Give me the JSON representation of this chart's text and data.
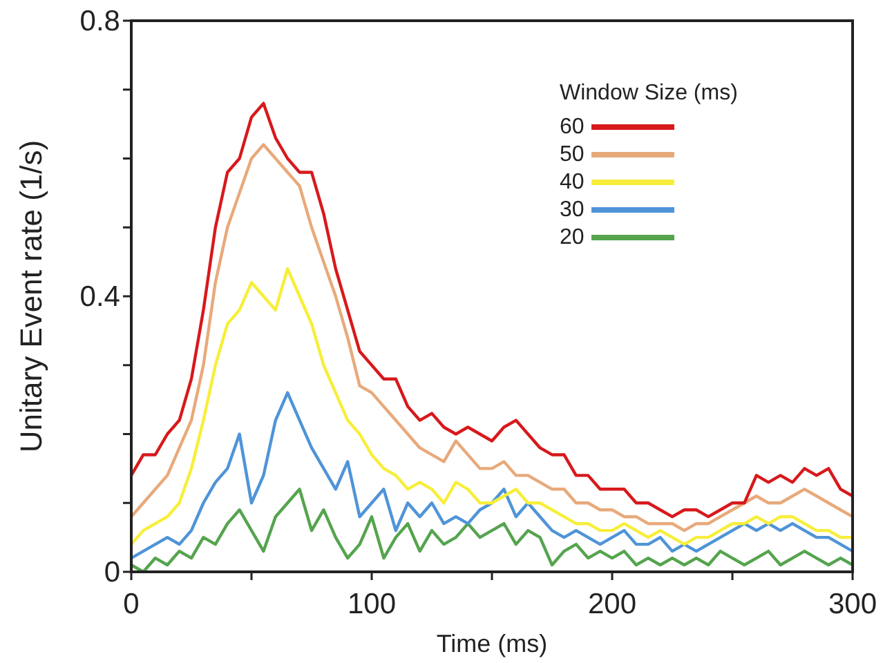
{
  "chart_data": {
    "type": "line",
    "xlabel": "Time (ms)",
    "ylabel": "Unitary Event rate  (1/s)",
    "legend_title": "Window Size (ms)",
    "legend": "top right",
    "grid": false,
    "line_style": "solid",
    "x": [
      0,
      5,
      10,
      15,
      20,
      25,
      30,
      35,
      40,
      45,
      50,
      55,
      60,
      65,
      70,
      75,
      80,
      85,
      90,
      95,
      100,
      105,
      110,
      115,
      120,
      125,
      130,
      135,
      140,
      145,
      150,
      155,
      160,
      165,
      170,
      175,
      180,
      185,
      190,
      195,
      200,
      205,
      210,
      215,
      220,
      225,
      230,
      235,
      240,
      245,
      250,
      255,
      260,
      265,
      270,
      275,
      280,
      285,
      290,
      295,
      300
    ],
    "xlim": [
      0,
      300
    ],
    "xticks": [
      0,
      {
        "value": 50,
        "label": null
      },
      100,
      {
        "value": 150,
        "label": null
      },
      200,
      {
        "value": 250,
        "label": null
      },
      300
    ],
    "ylim": [
      0,
      0.8
    ],
    "yticks": [
      0,
      {
        "value": 0.1,
        "label": null
      },
      {
        "value": 0.2,
        "label": null
      },
      {
        "value": 0.3,
        "label": null
      },
      0.4,
      {
        "value": 0.5,
        "label": null
      },
      {
        "value": 0.6,
        "label": null
      },
      {
        "value": 0.7,
        "label": null
      },
      0.8
    ],
    "series": [
      {
        "name": "60",
        "color": "#d7191c",
        "values": [
          0.14,
          0.17,
          0.17,
          0.2,
          0.22,
          0.28,
          0.38,
          0.5,
          0.58,
          0.6,
          0.66,
          0.68,
          0.63,
          0.6,
          0.58,
          0.58,
          0.52,
          0.44,
          0.38,
          0.32,
          0.3,
          0.28,
          0.28,
          0.24,
          0.22,
          0.23,
          0.21,
          0.2,
          0.21,
          0.2,
          0.19,
          0.21,
          0.22,
          0.2,
          0.18,
          0.17,
          0.17,
          0.14,
          0.14,
          0.12,
          0.12,
          0.12,
          0.1,
          0.1,
          0.09,
          0.08,
          0.09,
          0.09,
          0.08,
          0.09,
          0.1,
          0.1,
          0.14,
          0.13,
          0.14,
          0.13,
          0.15,
          0.14,
          0.15,
          0.12,
          0.11
        ]
      },
      {
        "name": "50",
        "color": "#e8a97a",
        "values": [
          0.08,
          0.1,
          0.12,
          0.14,
          0.18,
          0.22,
          0.3,
          0.42,
          0.5,
          0.55,
          0.6,
          0.62,
          0.6,
          0.58,
          0.56,
          0.5,
          0.45,
          0.4,
          0.34,
          0.27,
          0.26,
          0.24,
          0.22,
          0.2,
          0.18,
          0.17,
          0.16,
          0.19,
          0.17,
          0.15,
          0.15,
          0.16,
          0.14,
          0.14,
          0.13,
          0.12,
          0.12,
          0.1,
          0.1,
          0.09,
          0.09,
          0.08,
          0.08,
          0.07,
          0.07,
          0.07,
          0.06,
          0.07,
          0.07,
          0.08,
          0.09,
          0.1,
          0.11,
          0.1,
          0.1,
          0.11,
          0.12,
          0.11,
          0.1,
          0.09,
          0.08
        ]
      },
      {
        "name": "40",
        "color": "#f7ee3a",
        "values": [
          0.04,
          0.06,
          0.07,
          0.08,
          0.1,
          0.15,
          0.22,
          0.3,
          0.36,
          0.38,
          0.42,
          0.4,
          0.38,
          0.44,
          0.4,
          0.36,
          0.3,
          0.26,
          0.22,
          0.2,
          0.17,
          0.15,
          0.14,
          0.12,
          0.13,
          0.12,
          0.1,
          0.13,
          0.12,
          0.1,
          0.1,
          0.11,
          0.12,
          0.1,
          0.1,
          0.09,
          0.08,
          0.07,
          0.07,
          0.06,
          0.06,
          0.07,
          0.06,
          0.05,
          0.06,
          0.05,
          0.04,
          0.05,
          0.05,
          0.06,
          0.07,
          0.07,
          0.08,
          0.07,
          0.08,
          0.08,
          0.07,
          0.06,
          0.06,
          0.05,
          0.05
        ]
      },
      {
        "name": "30",
        "color": "#4f94d8",
        "values": [
          0.02,
          0.03,
          0.04,
          0.05,
          0.04,
          0.06,
          0.1,
          0.13,
          0.15,
          0.2,
          0.1,
          0.14,
          0.22,
          0.26,
          0.22,
          0.18,
          0.15,
          0.12,
          0.16,
          0.08,
          0.1,
          0.12,
          0.06,
          0.1,
          0.08,
          0.1,
          0.07,
          0.08,
          0.07,
          0.09,
          0.1,
          0.12,
          0.08,
          0.1,
          0.08,
          0.06,
          0.05,
          0.06,
          0.05,
          0.04,
          0.05,
          0.06,
          0.04,
          0.04,
          0.05,
          0.03,
          0.04,
          0.03,
          0.04,
          0.05,
          0.06,
          0.07,
          0.06,
          0.07,
          0.06,
          0.07,
          0.06,
          0.05,
          0.05,
          0.04,
          0.03
        ]
      },
      {
        "name": "20",
        "color": "#55a44e",
        "values": [
          0.01,
          0,
          0.02,
          0.01,
          0.03,
          0.02,
          0.05,
          0.04,
          0.07,
          0.09,
          0.06,
          0.03,
          0.08,
          0.1,
          0.12,
          0.06,
          0.09,
          0.05,
          0.02,
          0.04,
          0.08,
          0.02,
          0.05,
          0.07,
          0.03,
          0.06,
          0.04,
          0.05,
          0.07,
          0.05,
          0.06,
          0.07,
          0.04,
          0.06,
          0.05,
          0.01,
          0.03,
          0.04,
          0.02,
          0.03,
          0.02,
          0.03,
          0.01,
          0.02,
          0.01,
          0.02,
          0.01,
          0.02,
          0.01,
          0.03,
          0.02,
          0.01,
          0.02,
          0.03,
          0.01,
          0.02,
          0.03,
          0.02,
          0.01,
          0.02,
          0.01
        ]
      }
    ]
  }
}
